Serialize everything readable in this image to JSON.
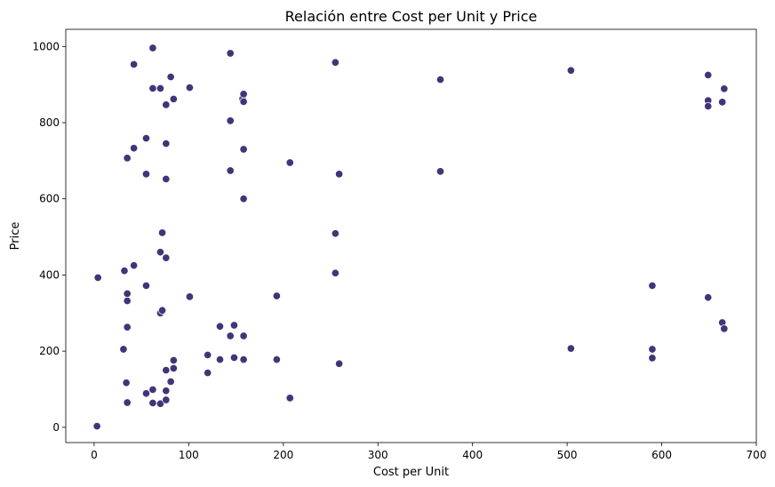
{
  "chart_data": {
    "type": "scatter",
    "title": "Relación entre Cost per Unit y Price",
    "xlabel": "Cost per Unit",
    "ylabel": "Price",
    "xlim": [
      -30,
      700
    ],
    "ylim": [
      -40,
      1045
    ],
    "xticks": [
      0,
      100,
      200,
      300,
      400,
      500,
      600,
      700
    ],
    "yticks": [
      0,
      200,
      400,
      600,
      800,
      1000
    ],
    "grid": false,
    "point_color": "#433479",
    "point_edge_color": "#ffffff",
    "series": [
      {
        "points": [
          [
            3,
            3
          ],
          [
            4,
            393
          ],
          [
            31,
            205
          ],
          [
            32,
            411
          ],
          [
            34,
            117
          ],
          [
            35,
            351
          ],
          [
            35,
            332
          ],
          [
            35,
            65
          ],
          [
            35,
            263
          ],
          [
            35,
            707
          ],
          [
            42,
            953
          ],
          [
            42,
            733
          ],
          [
            42,
            425
          ],
          [
            55,
            665
          ],
          [
            55,
            759
          ],
          [
            55,
            372
          ],
          [
            55,
            89
          ],
          [
            62,
            996
          ],
          [
            62,
            890
          ],
          [
            62,
            99
          ],
          [
            62,
            64
          ],
          [
            70,
            890
          ],
          [
            70,
            460
          ],
          [
            70,
            62
          ],
          [
            70,
            300
          ],
          [
            72,
            511
          ],
          [
            72,
            307
          ],
          [
            76,
            652
          ],
          [
            76,
            745
          ],
          [
            76,
            847
          ],
          [
            76,
            445
          ],
          [
            76,
            150
          ],
          [
            76,
            96
          ],
          [
            76,
            72
          ],
          [
            81,
            920
          ],
          [
            81,
            120
          ],
          [
            84,
            862
          ],
          [
            84,
            176
          ],
          [
            84,
            155
          ],
          [
            101,
            892
          ],
          [
            101,
            343
          ],
          [
            120,
            190
          ],
          [
            120,
            143
          ],
          [
            133,
            265
          ],
          [
            133,
            178
          ],
          [
            144,
            982
          ],
          [
            144,
            805
          ],
          [
            144,
            674
          ],
          [
            144,
            240
          ],
          [
            148,
            268
          ],
          [
            148,
            183
          ],
          [
            157,
            863
          ],
          [
            158,
            875
          ],
          [
            158,
            855
          ],
          [
            158,
            730
          ],
          [
            158,
            600
          ],
          [
            158,
            240
          ],
          [
            158,
            178
          ],
          [
            193,
            345
          ],
          [
            193,
            178
          ],
          [
            207,
            695
          ],
          [
            207,
            77
          ],
          [
            255,
            958
          ],
          [
            255,
            509
          ],
          [
            255,
            405
          ],
          [
            259,
            665
          ],
          [
            259,
            167
          ],
          [
            366,
            913
          ],
          [
            366,
            672
          ],
          [
            504,
            937
          ],
          [
            504,
            207
          ],
          [
            590,
            372
          ],
          [
            590,
            205
          ],
          [
            590,
            182
          ],
          [
            649,
            925
          ],
          [
            649,
            858
          ],
          [
            649,
            843
          ],
          [
            649,
            341
          ],
          [
            664,
            854
          ],
          [
            664,
            275
          ],
          [
            666,
            889
          ],
          [
            666,
            259
          ]
        ]
      }
    ]
  }
}
